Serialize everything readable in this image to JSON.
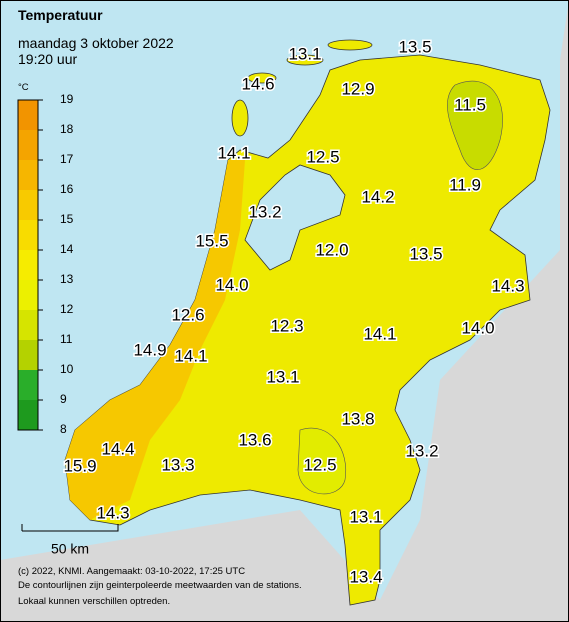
{
  "header": {
    "title": "Temperatuur",
    "date": "maandag 3 oktober 2022",
    "time": "19:20 uur"
  },
  "legend": {
    "unit": "°C",
    "ticks": [
      8,
      9,
      10,
      11,
      12,
      13,
      14,
      15,
      16,
      17,
      18,
      19
    ],
    "colors": [
      "#1e9a1e",
      "#2aae2a",
      "#b4d200",
      "#d6e400",
      "#ecf000",
      "#f6ec00",
      "#f8dc00",
      "#f8ca00",
      "#f6b600",
      "#f4a400",
      "#f29400"
    ]
  },
  "stations": [
    "13.1",
    "13.5",
    "14.6",
    "12.9",
    "11.5",
    "14.1",
    "12.5",
    "14.2",
    "11.9",
    "13.2",
    "15.5",
    "12.0",
    "13.5",
    "14.3",
    "14.0",
    "12.6",
    "12.3",
    "14.1",
    "14.0",
    "14.9",
    "14.1",
    "13.1",
    "13.8",
    "13.6",
    "14.4",
    "13.2",
    "15.9",
    "13.3",
    "12.5",
    "14.3",
    "13.1",
    "13.4"
  ],
  "scale": {
    "label": "50 km"
  },
  "footer": [
    "(c) 2022, KNMI. Aangemaakt: 03-10-2022, 17:25 UTC",
    "De contourlijnen zijn geinterpoleerde meetwaarden van de stations.",
    "Lokaal kunnen verschillen optreden."
  ]
}
